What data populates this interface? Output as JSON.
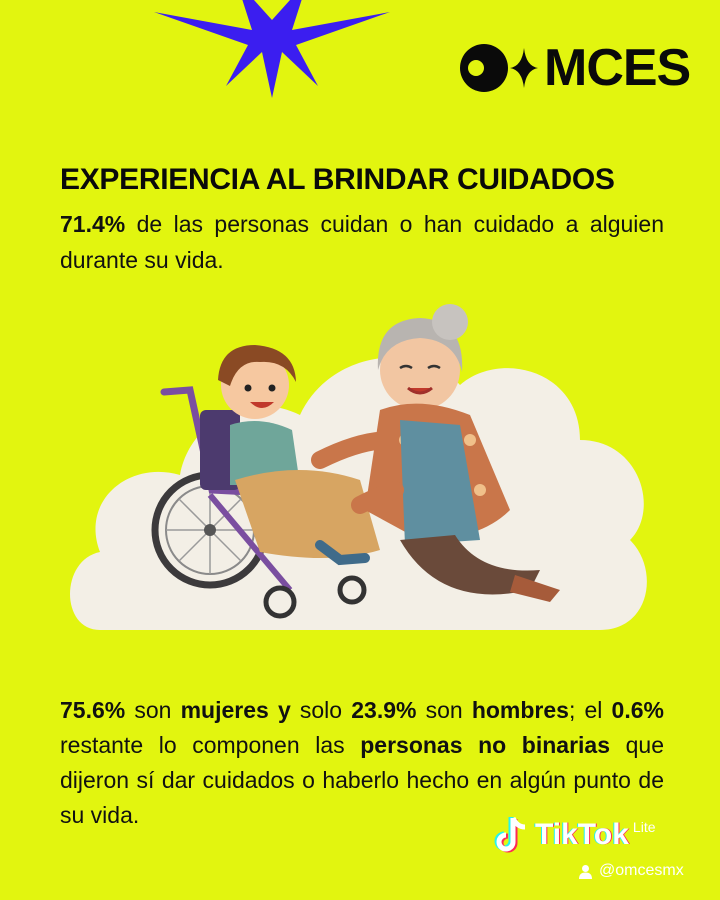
{
  "brand": {
    "logo_text": "MCES",
    "logo_mark_icon": "eye-spark-icon"
  },
  "title": "EXPERIENCIA AL BRINDAR CUIDADOS",
  "intro": {
    "stat": "71.4%",
    "text": " de las personas cuidan o han cuidado a alguien durante su vida."
  },
  "illustration": {
    "icon": "caregiver-grandmother-child-wheelchair-illustration"
  },
  "breakdown": {
    "s1": "75.6%",
    "t1": " son ",
    "b1": "mujeres y",
    "t2": " solo ",
    "s2": "23.9%",
    "t3": " son ",
    "b2": "hombres",
    "t4": "; el ",
    "s3": "0.6%",
    "t5": " restante lo componen las ",
    "b3": "personas no binarias",
    "t6": " que dijeron sí dar cuidados o haberlo hecho en algún punto de su vida."
  },
  "watermark": {
    "app": "TikTok",
    "variant": "Lite",
    "handle": "@omcesmx"
  },
  "colors": {
    "background": "#e2f50f",
    "star": "#3b1ef0",
    "text": "#111111",
    "cloud": "#f3efe6"
  }
}
